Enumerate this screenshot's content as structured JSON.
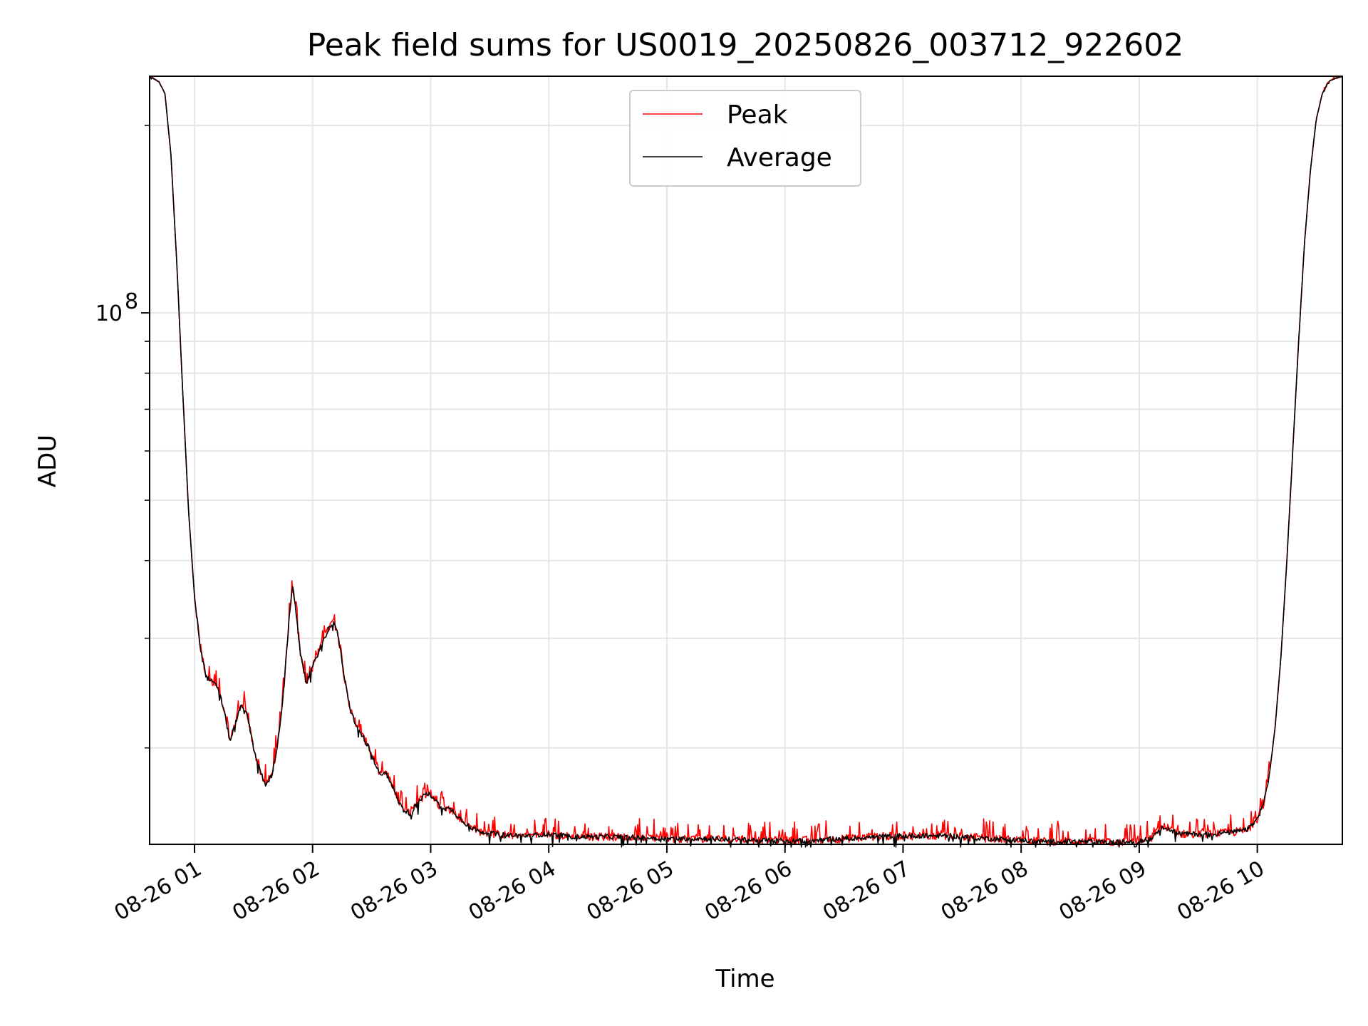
{
  "chart_data": {
    "type": "line",
    "title": "Peak field sums for US0019_20250826_003712_922602",
    "xlabel": "Time",
    "ylabel": "ADU",
    "y_scale": "log",
    "grid": true,
    "legend_position": "top-center",
    "x_ticks": [
      1,
      2,
      3,
      4,
      5,
      6,
      7,
      8,
      9,
      10
    ],
    "x_tick_labels": [
      "08-26 01",
      "08-26 02",
      "08-26 03",
      "08-26 04",
      "08-26 05",
      "08-26 06",
      "08-26 07",
      "08-26 08",
      "08-26 09",
      "08-26 10"
    ],
    "y_major_ticks": [
      100000000
    ],
    "y_major_tick_labels": [
      "10",
      "8"
    ],
    "y_minor_ticks": [
      20000000,
      30000000,
      40000000,
      50000000,
      60000000,
      70000000,
      80000000,
      90000000,
      200000000
    ],
    "xlim": [
      0.62,
      10.72
    ],
    "ylim": [
      14000000,
      240000000
    ],
    "x_unit": "hours on 2025-08-26",
    "series": [
      {
        "name": "Peak",
        "color": "#ff0000",
        "noise": 0.03
      },
      {
        "name": "Average",
        "color": "#000000",
        "noise": 0.018
      }
    ],
    "x": [
      0.62,
      0.7,
      0.75,
      0.8,
      0.85,
      0.9,
      0.95,
      1.0,
      1.05,
      1.1,
      1.15,
      1.2,
      1.25,
      1.3,
      1.35,
      1.4,
      1.45,
      1.5,
      1.55,
      1.6,
      1.65,
      1.7,
      1.75,
      1.8,
      1.83,
      1.86,
      1.9,
      1.95,
      2.0,
      2.05,
      2.1,
      2.15,
      2.18,
      2.22,
      2.27,
      2.32,
      2.38,
      2.45,
      2.5,
      2.55,
      2.58,
      2.62,
      2.67,
      2.72,
      2.77,
      2.82,
      2.87,
      2.92,
      2.97,
      3.02,
      3.07,
      3.12,
      3.18,
      3.25,
      3.32,
      3.4,
      3.5,
      3.6,
      3.8,
      4.0,
      4.2,
      4.5,
      4.8,
      5.0,
      5.3,
      5.6,
      5.9,
      6.2,
      6.5,
      6.8,
      7.1,
      7.4,
      7.6,
      7.9,
      8.2,
      8.5,
      8.7,
      8.8,
      9.0,
      9.1,
      9.15,
      9.2,
      9.23,
      9.26,
      9.3,
      9.35,
      9.4,
      9.5,
      9.6,
      9.7,
      9.8,
      9.9,
      9.95,
      10.0,
      10.05,
      10.1,
      10.15,
      10.2,
      10.25,
      10.3,
      10.35,
      10.4,
      10.45,
      10.5,
      10.55,
      10.6,
      10.65,
      10.72
    ],
    "y": [
      240000000,
      235000000,
      225000000,
      180000000,
      120000000,
      75000000,
      48000000,
      35000000,
      29000000,
      26000000,
      25500000,
      25000000,
      23000000,
      20500000,
      22000000,
      23500000,
      22500000,
      20000000,
      18500000,
      17500000,
      18000000,
      20000000,
      24000000,
      32000000,
      36500000,
      33000000,
      28000000,
      25500000,
      27000000,
      28500000,
      30000000,
      31500000,
      32000000,
      30000000,
      26000000,
      23000000,
      21500000,
      20500000,
      19500000,
      18500000,
      18000000,
      18300000,
      17500000,
      16500000,
      15900000,
      15700000,
      16100000,
      16600000,
      16900000,
      16700000,
      16200000,
      16000000,
      15900000,
      15400000,
      15000000,
      14700000,
      14600000,
      14500000,
      14450000,
      14550000,
      14400000,
      14400000,
      14350000,
      14300000,
      14300000,
      14250000,
      14200000,
      14200000,
      14300000,
      14400000,
      14450000,
      14450000,
      14350000,
      14250000,
      14150000,
      14150000,
      14100000,
      14100000,
      14150000,
      14300000,
      14700000,
      14900000,
      14950000,
      14800000,
      14650000,
      14550000,
      14550000,
      14550000,
      14550000,
      14600000,
      14650000,
      14750000,
      15000000,
      15400000,
      16200000,
      18000000,
      21500000,
      28000000,
      40000000,
      60000000,
      90000000,
      130000000,
      170000000,
      205000000,
      225000000,
      235000000,
      238000000,
      240000000
    ]
  }
}
